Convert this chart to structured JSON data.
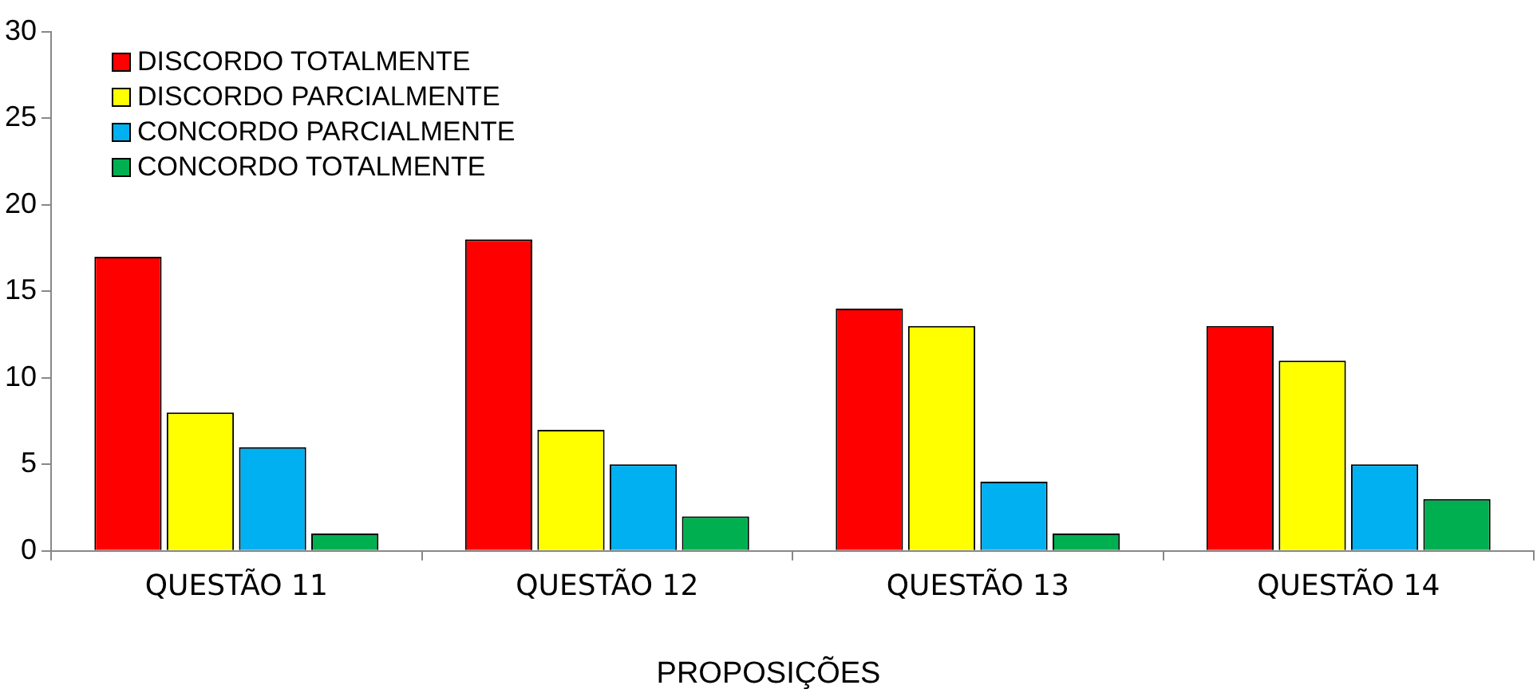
{
  "chart_data": {
    "type": "bar",
    "xlabel": "PROPOSIÇÕES",
    "categories": [
      "QUESTÃO 11",
      "QUESTÃO 12",
      "QUESTÃO 13",
      "QUESTÃO 14"
    ],
    "series": [
      {
        "name": "DISCORDO TOTALMENTE",
        "color": "#ff0000",
        "values": [
          17,
          18,
          14,
          13
        ]
      },
      {
        "name": "DISCORDO PARCIALMENTE",
        "color": "#ffff00",
        "values": [
          8,
          7,
          13,
          11
        ]
      },
      {
        "name": "CONCORDO PARCIALMENTE",
        "color": "#00b0f0",
        "values": [
          6,
          5,
          4,
          5
        ]
      },
      {
        "name": "CONCORDO TOTALMENTE",
        "color": "#00b050",
        "values": [
          1,
          2,
          1,
          3
        ]
      }
    ],
    "ylim": [
      0,
      30
    ],
    "yticks": [
      0,
      5,
      10,
      15,
      20,
      25,
      30
    ],
    "grid": false,
    "legend": "top left"
  }
}
